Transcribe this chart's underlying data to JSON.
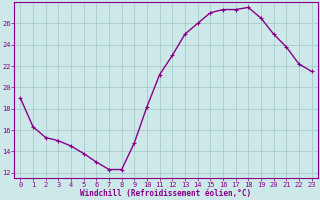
{
  "x": [
    0,
    1,
    2,
    3,
    4,
    5,
    6,
    7,
    8,
    9,
    10,
    11,
    12,
    13,
    14,
    15,
    16,
    17,
    18,
    19,
    20,
    21,
    22,
    23
  ],
  "y": [
    19.0,
    16.3,
    15.3,
    15.0,
    14.5,
    13.8,
    13.0,
    12.3,
    12.3,
    14.8,
    18.2,
    21.2,
    23.0,
    25.0,
    26.0,
    27.0,
    27.3,
    27.3,
    27.5,
    26.5,
    25.0,
    23.8,
    22.2,
    21.5
  ],
  "line_color": "#880088",
  "marker": "+",
  "marker_size": 3,
  "linewidth": 1.0,
  "xlabel": "Windchill (Refroidissement éolien,°C)",
  "xlim": [
    -0.5,
    23.5
  ],
  "ylim": [
    11.5,
    28.0
  ],
  "yticks": [
    12,
    14,
    16,
    18,
    20,
    22,
    24,
    26
  ],
  "xticks": [
    0,
    1,
    2,
    3,
    4,
    5,
    6,
    7,
    8,
    9,
    10,
    11,
    12,
    13,
    14,
    15,
    16,
    17,
    18,
    19,
    20,
    21,
    22,
    23
  ],
  "bg_color": "#cce8e8",
  "grid_color": "#aacccc",
  "tick_label_color": "#880088",
  "xlabel_color": "#880088",
  "border_color": "#880088",
  "tick_fontsize": 5.0,
  "xlabel_fontsize": 5.5
}
